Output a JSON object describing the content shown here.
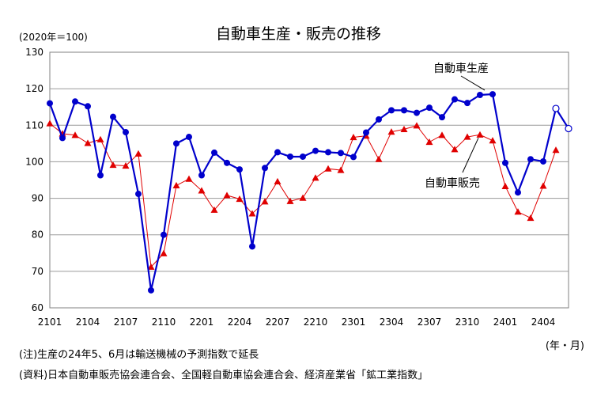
{
  "header": {
    "title": "自動車生産・販売の推移",
    "unit": "(2020年＝100)",
    "x_unit": "(年・月)"
  },
  "notes": [
    "(注)生産の24年5、6月は輸送機械の予測指数で延長",
    "(資料)日本自動車販売協会連合会、全国軽自動車協会連合会、経済産業省「鉱工業指数」"
  ],
  "chart_data": {
    "type": "line",
    "title": "自動車生産・販売の推移",
    "ylabel": "(2020年＝100)",
    "xlabel": "(年・月)",
    "ylim": [
      60,
      130
    ],
    "yticks": [
      60,
      70,
      80,
      90,
      100,
      110,
      120,
      130
    ],
    "x": [
      "2101",
      "2102",
      "2103",
      "2104",
      "2105",
      "2106",
      "2107",
      "2108",
      "2109",
      "2110",
      "2111",
      "2112",
      "2201",
      "2202",
      "2203",
      "2204",
      "2205",
      "2206",
      "2207",
      "2208",
      "2209",
      "2210",
      "2211",
      "2212",
      "2301",
      "2302",
      "2303",
      "2304",
      "2305",
      "2306",
      "2307",
      "2308",
      "2309",
      "2310",
      "2311",
      "2312",
      "2401",
      "2402",
      "2403",
      "2404",
      "2405",
      "2406"
    ],
    "xtick_labels": [
      "2101",
      "2104",
      "2107",
      "2110",
      "2201",
      "2204",
      "2207",
      "2210",
      "2301",
      "2304",
      "2307",
      "2310",
      "2401",
      "2404"
    ],
    "grid": true,
    "series": [
      {
        "name": "自動車生産",
        "color": "#0000CC",
        "marker": "circle",
        "values": [
          116.0,
          106.5,
          116.5,
          115.2,
          96.3,
          112.3,
          108.1,
          91.2,
          64.8,
          80.0,
          105.0,
          106.8,
          96.3,
          102.5,
          99.7,
          97.9,
          76.8,
          98.3,
          102.6,
          101.4,
          101.4,
          103.0,
          102.6,
          102.4,
          101.3,
          108.0,
          111.6,
          114.1,
          114.1,
          113.4,
          114.8,
          112.2,
          117.1,
          116.1,
          118.3,
          118.5,
          99.7,
          91.6,
          100.7,
          100.1,
          114.6,
          109.1
        ],
        "estimated_from_index": 40
      },
      {
        "name": "自動車販売",
        "color": "#E00000",
        "marker": "triangle",
        "values": [
          110.5,
          107.7,
          107.3,
          105.1,
          106.1,
          99.1,
          98.9,
          102.2,
          71.2,
          74.9,
          93.5,
          95.3,
          92.1,
          86.8,
          90.8,
          89.8,
          85.8,
          89.1,
          94.6,
          89.2,
          90.1,
          95.6,
          98.1,
          97.7,
          106.7,
          107.1,
          100.7,
          108.2,
          108.9,
          109.9,
          105.4,
          107.3,
          103.4,
          106.8,
          107.4,
          105.8,
          93.3,
          86.3,
          84.6,
          93.4,
          103.2,
          null
        ]
      }
    ],
    "annotations": [
      "自動車生産",
      "自動車販売"
    ]
  }
}
